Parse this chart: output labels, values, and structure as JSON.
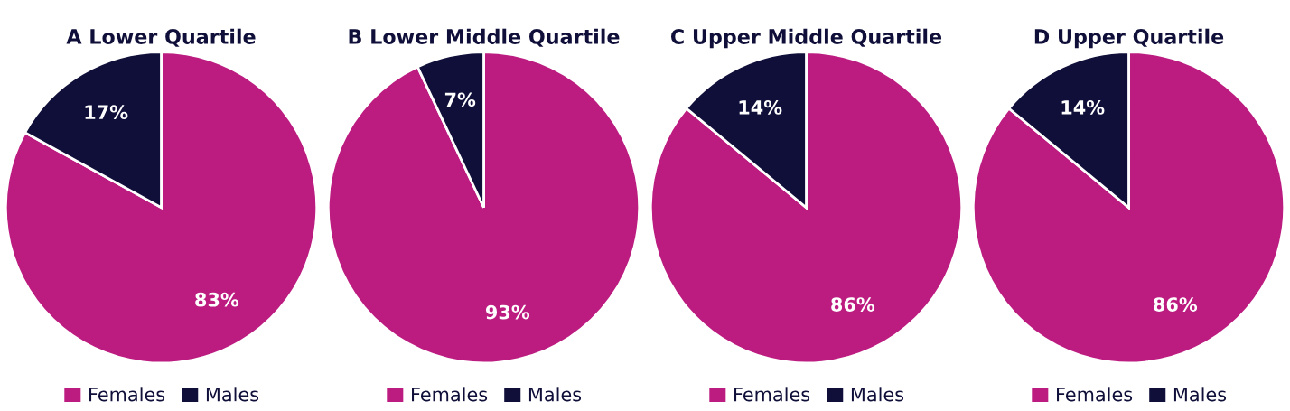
{
  "chart_data": [
    {
      "type": "pie",
      "title": "A Lower Quartile",
      "categories": [
        "Females",
        "Males"
      ],
      "values": [
        83,
        17
      ],
      "colors": [
        "#bc1c80",
        "#0f0f3a"
      ],
      "value_labels": [
        "83%",
        "17%"
      ],
      "legend": "bottom"
    },
    {
      "type": "pie",
      "title": "B Lower Middle Quartile",
      "categories": [
        "Females",
        "Males"
      ],
      "values": [
        93,
        7
      ],
      "colors": [
        "#bc1c80",
        "#0f0f3a"
      ],
      "value_labels": [
        "93%",
        "7%"
      ],
      "legend": "bottom"
    },
    {
      "type": "pie",
      "title": "C Upper Middle Quartile",
      "categories": [
        "Females",
        "Males"
      ],
      "values": [
        86,
        14
      ],
      "colors": [
        "#bc1c80",
        "#0f0f3a"
      ],
      "value_labels": [
        "86%",
        "14%"
      ],
      "legend": "bottom"
    },
    {
      "type": "pie",
      "title": "D Upper Quartile",
      "categories": [
        "Females",
        "Males"
      ],
      "values": [
        86,
        14
      ],
      "colors": [
        "#bc1c80",
        "#0f0f3a"
      ],
      "value_labels": [
        "86%",
        "14%"
      ],
      "legend": "bottom"
    }
  ]
}
